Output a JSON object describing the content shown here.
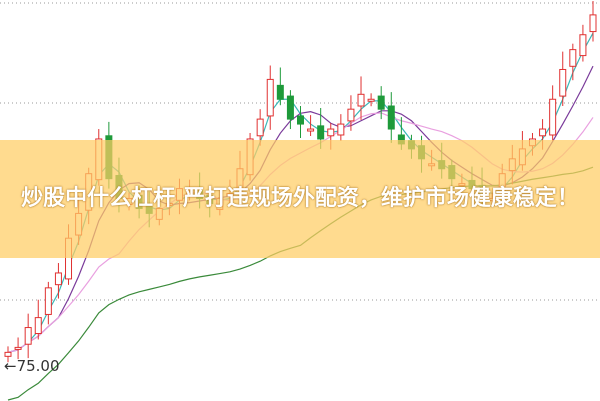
{
  "chart_data": {
    "type": "candlestick",
    "title": "",
    "price_annotation": "←75.00",
    "ylim": [
      66,
      167
    ],
    "grid": "horizontal dotted",
    "up_color": "#e03030",
    "down_color": "#1e9a3a",
    "ma_colors": [
      "#3bb8b8",
      "#7a3a9a",
      "#e9a0e0",
      "#3a8a3a"
    ],
    "closes": [
      78.25,
      79.5,
      84.5,
      87,
      94.5,
      98.25,
      107,
      113.25,
      123.25,
      132,
      122,
      117,
      117,
      114.5,
      113.25,
      114.5,
      115.75,
      119.5,
      118.25,
      117,
      115.75,
      117,
      118.25,
      124.5,
      132,
      137,
      147,
      142,
      137,
      135.75,
      134.5,
      132,
      134.5,
      135.75,
      139.5,
      143.25,
      142,
      139.5,
      134.5,
      130.75,
      129.5,
      127,
      125.75,
      124.5,
      122,
      120.75,
      119.5,
      118.25,
      117,
      123.25,
      127,
      129.5,
      132,
      134.5,
      142,
      149.5,
      154.5,
      158.25,
      163.25
    ]
  },
  "overlay": {
    "title": "炒股中什么杠杆 严打违规场外配资，维护市场健康稳定！"
  }
}
